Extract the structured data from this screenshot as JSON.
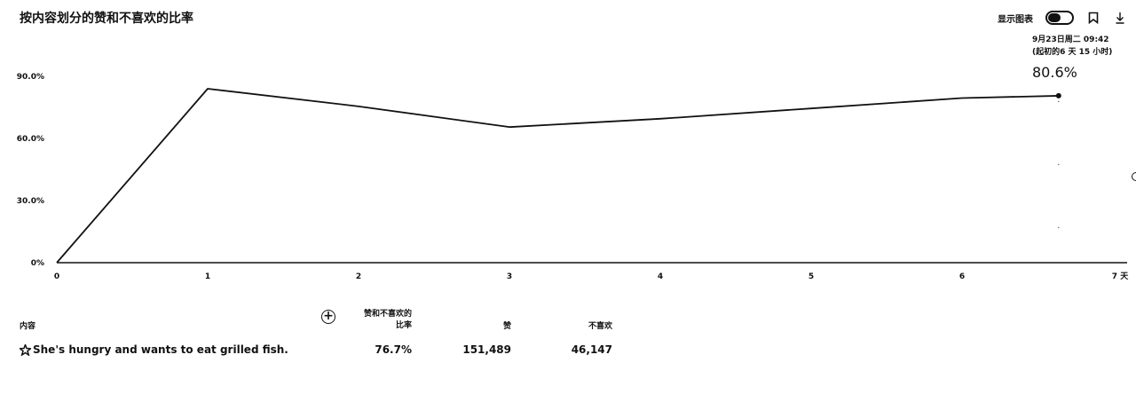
{
  "title": "按内容划分的赞和不喜欢的比率",
  "toolbar": {
    "show_chart_label": "显示图表",
    "icons": [
      "toggle-icon",
      "bookmark-icon",
      "download-icon"
    ]
  },
  "tooltip": {
    "date": "9月23日周二 09:42",
    "since": "(起初的6 天 15 小时)",
    "value": "80.6%"
  },
  "chart_data": {
    "type": "line",
    "title": "按内容划分的赞和不喜欢的比率",
    "xlabel": "",
    "ylabel": "",
    "x_ticks": [
      "0",
      "1",
      "2",
      "3",
      "4",
      "5",
      "6",
      "7 天"
    ],
    "y_ticks": [
      "0%",
      "30.0%",
      "60.0%",
      "90.0%"
    ],
    "xlim": [
      0,
      7
    ],
    "ylim": [
      0,
      90
    ],
    "series": [
      {
        "x": [
          0,
          1,
          2,
          3,
          4,
          5,
          6,
          6.64
        ],
        "y": [
          0,
          84.0,
          75.5,
          65.5,
          69.5,
          74.5,
          79.5,
          80.6
        ]
      }
    ],
    "grid": false,
    "colors": [
      "#111111"
    ]
  },
  "table": {
    "headers": {
      "content": "内容",
      "ratio_line1": "赞和不喜欢的",
      "ratio_line2": "比率",
      "likes": "赞",
      "dislikes": "不喜欢"
    },
    "rows": [
      {
        "title": "She's hungry and wants to eat grilled fish.",
        "ratio": "76.7%",
        "likes": "151,489",
        "dislikes": "46,147"
      }
    ]
  }
}
